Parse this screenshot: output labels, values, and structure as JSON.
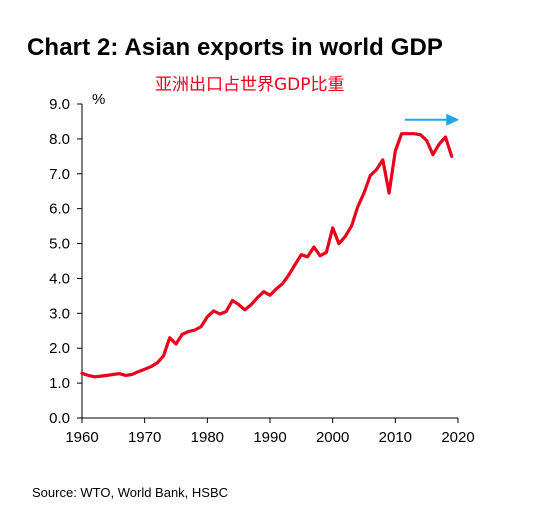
{
  "chart_data": {
    "type": "line",
    "title": "Chart 2: Asian exports in world GDP",
    "subtitle": "亚洲出口占世界GDP比重",
    "ylabel": "%",
    "xlabel": "",
    "source": "Source: WTO, World Bank, HSBC",
    "xlim": [
      1960,
      2020
    ],
    "ylim": [
      0,
      9
    ],
    "x_ticks": [
      "1960",
      "1970",
      "1980",
      "1990",
      "2000",
      "2010",
      "2020"
    ],
    "y_ticks": [
      "0.0",
      "1.0",
      "2.0",
      "3.0",
      "4.0",
      "5.0",
      "6.0",
      "7.0",
      "8.0",
      "9.0"
    ],
    "grid": false,
    "series": [
      {
        "color": "#e8001c",
        "x": [
          1960,
          1961,
          1962,
          1963,
          1964,
          1965,
          1966,
          1967,
          1968,
          1969,
          1970,
          1971,
          1972,
          1973,
          1974,
          1975,
          1976,
          1977,
          1978,
          1979,
          1980,
          1981,
          1982,
          1983,
          1984,
          1985,
          1986,
          1987,
          1988,
          1989,
          1990,
          1991,
          1992,
          1993,
          1994,
          1995,
          1996,
          1997,
          1998,
          1999,
          2000,
          2001,
          2002,
          2003,
          2004,
          2005,
          2006,
          2007,
          2008,
          2009,
          2010,
          2011,
          2012,
          2013,
          2014,
          2015,
          2016,
          2017,
          2018,
          2019
        ],
        "y": [
          1.28,
          1.22,
          1.18,
          1.2,
          1.22,
          1.25,
          1.27,
          1.22,
          1.25,
          1.33,
          1.4,
          1.47,
          1.58,
          1.78,
          2.3,
          2.12,
          2.4,
          2.48,
          2.52,
          2.62,
          2.9,
          3.07,
          2.98,
          3.05,
          3.37,
          3.25,
          3.1,
          3.25,
          3.45,
          3.62,
          3.52,
          3.7,
          3.85,
          4.1,
          4.4,
          4.68,
          4.62,
          4.9,
          4.65,
          4.75,
          5.45,
          5.0,
          5.2,
          5.5,
          6.05,
          6.45,
          6.95,
          7.12,
          7.4,
          6.45,
          7.65,
          8.15,
          8.15,
          8.15,
          8.12,
          7.95,
          7.55,
          7.85,
          8.05,
          7.5
        ]
      }
    ],
    "annotations": [
      {
        "type": "arrow",
        "color": "#1aa7e8",
        "from": [
          2011.5,
          8.55
        ],
        "to": [
          2020.2,
          8.55
        ]
      }
    ]
  }
}
